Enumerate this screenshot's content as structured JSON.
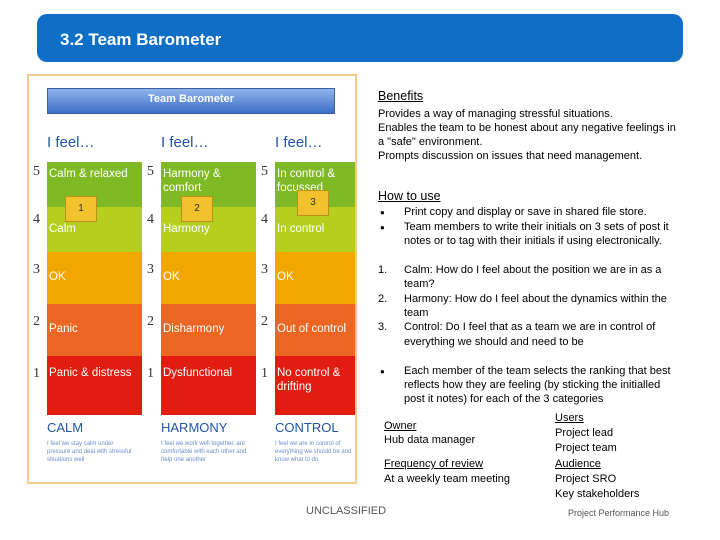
{
  "slide": {
    "title": "3.2 Team Barometer"
  },
  "figure": {
    "header": "Team Barometer",
    "columns": [
      {
        "ifeel": "I feel…",
        "title": "CALM",
        "note": "1",
        "bands": [
          "Calm & relaxed",
          "Calm",
          "OK",
          "Panic",
          "Panic & distress"
        ],
        "desc": "I feel we stay calm under pressure and deal with stressful situations well"
      },
      {
        "ifeel": "I feel…",
        "title": "HARMONY",
        "note": "2",
        "bands": [
          "Harmony & comfort",
          "Harmony",
          "OK",
          "Disharmony",
          "Dysfunctional"
        ],
        "desc": "I feel we work well together, are comfortable with each other and help one another"
      },
      {
        "ifeel": "I feel…",
        "title": "CONTROL",
        "note": "3",
        "bands": [
          "In control & focussed",
          "In control",
          "OK",
          "Out of control",
          "No control & drifting"
        ],
        "desc": "I feel we are in control of everything we should be and know what to do"
      }
    ],
    "scale": [
      "5",
      "4",
      "3",
      "2",
      "1"
    ]
  },
  "benefits": {
    "heading": "Benefits",
    "lines": [
      "Provides a way of managing stressful situations.",
      "Enables the team to be honest about any negative feelings in",
      "a \"safe\" environment.",
      "Prompts discussion on issues that need management."
    ]
  },
  "how_to_use": {
    "heading": "How to use",
    "bullets1": [
      {
        "lines": [
          "Print copy and display or save in shared file store."
        ]
      },
      {
        "lines": [
          "Team members to write their initials on 3 sets of post it",
          "notes or to tag with their initials if using electronically."
        ]
      }
    ],
    "numbered": [
      {
        "n": "1.",
        "lines": [
          "Calm: How do I feel about the position we are in as a",
          "team?"
        ]
      },
      {
        "n": "2.",
        "lines": [
          "Harmony: How do I feel about the dynamics within the",
          "team"
        ]
      },
      {
        "n": "3.",
        "lines": [
          "Control: Do I feel that as a team we are in control of",
          "everything we should and need to be"
        ]
      }
    ],
    "bullets2": [
      {
        "lines": [
          "Each member of the team selects the ranking that best",
          "reflects how they are feeling (by sticking the initialled",
          "post it notes) for each of the 3 categories"
        ]
      }
    ]
  },
  "owner": {
    "heading": "Owner",
    "value": "Hub data manager"
  },
  "frequency": {
    "heading": "Frequency of review",
    "value": "At a weekly team meeting"
  },
  "users": {
    "heading": "Users",
    "values": [
      "Project lead",
      "Project team"
    ]
  },
  "audience": {
    "heading": "Audience",
    "values": [
      "Project SRO",
      "Key stakeholders"
    ]
  },
  "footer": {
    "classification": "UNCLASSIFIED",
    "brand": "Project Performance Hub"
  }
}
